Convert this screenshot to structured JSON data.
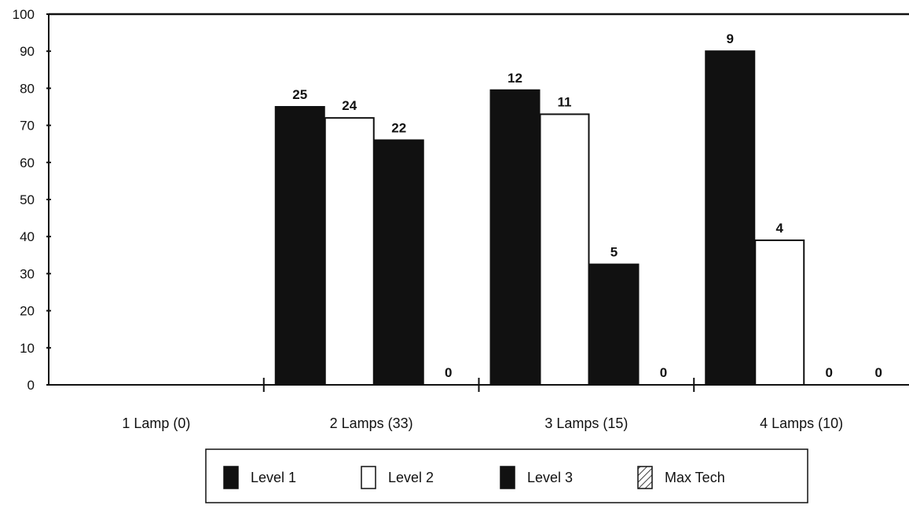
{
  "chart_data": {
    "type": "bar",
    "categories": [
      "1 Lamp (0)",
      "2 Lamps (33)",
      "3 Lamps (15)",
      "4 Lamps (10)"
    ],
    "series": [
      {
        "name": "Level 1",
        "values": [
          null,
          75,
          79.5,
          90
        ],
        "labels": [
          "",
          "25",
          "12",
          "9"
        ],
        "color": "#111111",
        "pattern": "solid"
      },
      {
        "name": "Level 2",
        "values": [
          null,
          72,
          73,
          39
        ],
        "labels": [
          "",
          "24",
          "11",
          "4"
        ],
        "color": "#ffffff",
        "pattern": "hollow"
      },
      {
        "name": "Level 3",
        "values": [
          null,
          66,
          32.5,
          0
        ],
        "labels": [
          "",
          "22",
          "5",
          "0"
        ],
        "color": "#111111",
        "pattern": "solid"
      },
      {
        "name": "Max Tech",
        "values": [
          null,
          0,
          0,
          0
        ],
        "labels": [
          "",
          "0",
          "0",
          "0"
        ],
        "color": "#111111",
        "pattern": "hatched"
      }
    ],
    "ylim": [
      0,
      100
    ],
    "yticks": [
      "0",
      "10",
      "20",
      "30",
      "40",
      "50",
      "60",
      "70",
      "80",
      "90",
      "100"
    ],
    "title": "",
    "xlabel": "",
    "ylabel": "",
    "grid": false,
    "legend_position": "bottom-center"
  }
}
